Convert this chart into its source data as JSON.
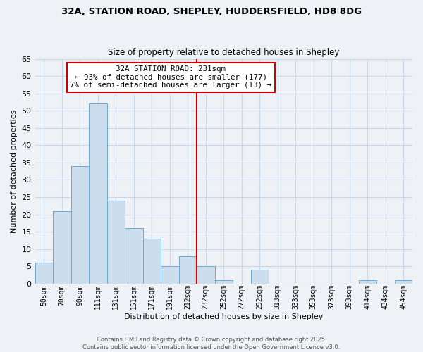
{
  "title": "32A, STATION ROAD, SHEPLEY, HUDDERSFIELD, HD8 8DG",
  "subtitle": "Size of property relative to detached houses in Shepley",
  "xlabel": "Distribution of detached houses by size in Shepley",
  "ylabel": "Number of detached properties",
  "bin_labels": [
    "50sqm",
    "70sqm",
    "90sqm",
    "111sqm",
    "131sqm",
    "151sqm",
    "171sqm",
    "191sqm",
    "212sqm",
    "232sqm",
    "252sqm",
    "272sqm",
    "292sqm",
    "313sqm",
    "333sqm",
    "353sqm",
    "373sqm",
    "393sqm",
    "414sqm",
    "434sqm",
    "454sqm"
  ],
  "bar_heights": [
    6,
    21,
    34,
    52,
    24,
    16,
    13,
    5,
    8,
    5,
    1,
    0,
    4,
    0,
    0,
    0,
    0,
    0,
    1,
    0,
    1
  ],
  "bar_color": "#ccdded",
  "bar_edge_color": "#6aaad4",
  "grid_color": "#c8d8e8",
  "vline_x_index": 9,
  "vline_color": "#cc0000",
  "annotation_title": "32A STATION ROAD: 231sqm",
  "annotation_line1": "← 93% of detached houses are smaller (177)",
  "annotation_line2": "7% of semi-detached houses are larger (13) →",
  "ylim": [
    0,
    65
  ],
  "yticks": [
    0,
    5,
    10,
    15,
    20,
    25,
    30,
    35,
    40,
    45,
    50,
    55,
    60,
    65
  ],
  "footer1": "Contains HM Land Registry data © Crown copyright and database right 2025.",
  "footer2": "Contains public sector information licensed under the Open Government Licence v3.0.",
  "bg_color": "#eef2f7"
}
